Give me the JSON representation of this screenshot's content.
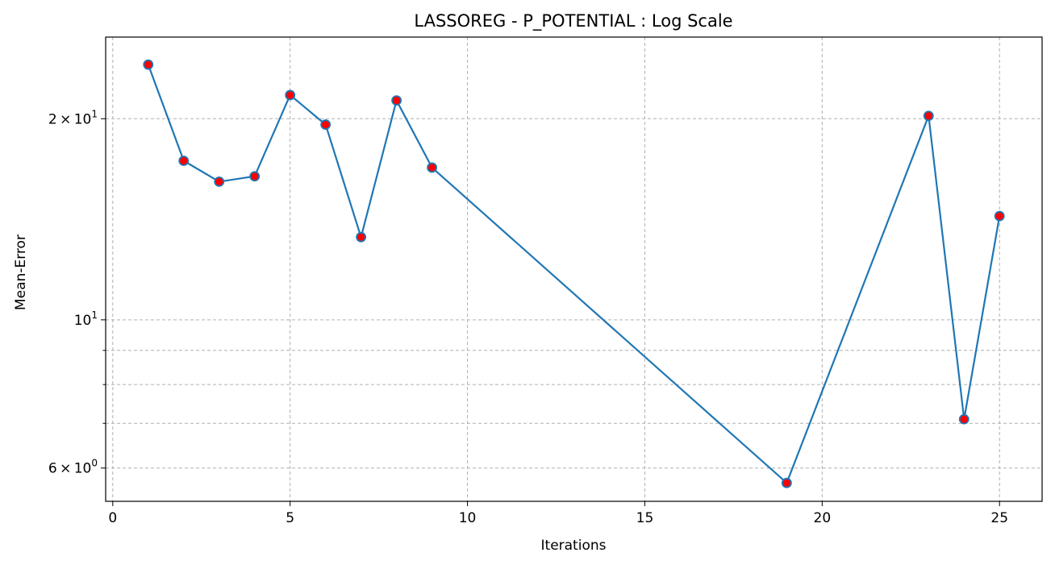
{
  "chart_data": {
    "type": "line",
    "title": "LASSOREG - P_POTENTIAL : Log Scale",
    "xlabel": "Iterations",
    "ylabel": "Mean-Error",
    "xlim": [
      -0.2,
      26.2
    ],
    "ylim": [
      5.35,
      26.5
    ],
    "y_scale": "log",
    "grid": true,
    "x_ticks": [
      0,
      5,
      10,
      15,
      20,
      25
    ],
    "x_tick_labels": [
      "0",
      "5",
      "10",
      "15",
      "20",
      "25"
    ],
    "y_major_ticks": [
      {
        "value": 6,
        "base": "6",
        "sep": "×",
        "exp_base": "10",
        "exp": "0"
      },
      {
        "value": 10,
        "base": "",
        "sep": "",
        "exp_base": "10",
        "exp": "1"
      },
      {
        "value": 20,
        "base": "2",
        "sep": "×",
        "exp_base": "10",
        "exp": "1"
      }
    ],
    "y_minor_ticks": [
      7,
      8,
      9
    ],
    "series": [
      {
        "x": [
          1,
          2,
          3,
          4,
          5,
          6,
          7,
          8,
          9,
          19,
          23,
          24,
          25
        ],
        "values": [
          24.1,
          17.3,
          16.1,
          16.4,
          21.7,
          19.6,
          13.3,
          21.3,
          16.9,
          5.7,
          20.2,
          7.1,
          14.3
        ],
        "color": "#1f77b4",
        "marker_color": "#ff0000"
      }
    ]
  }
}
